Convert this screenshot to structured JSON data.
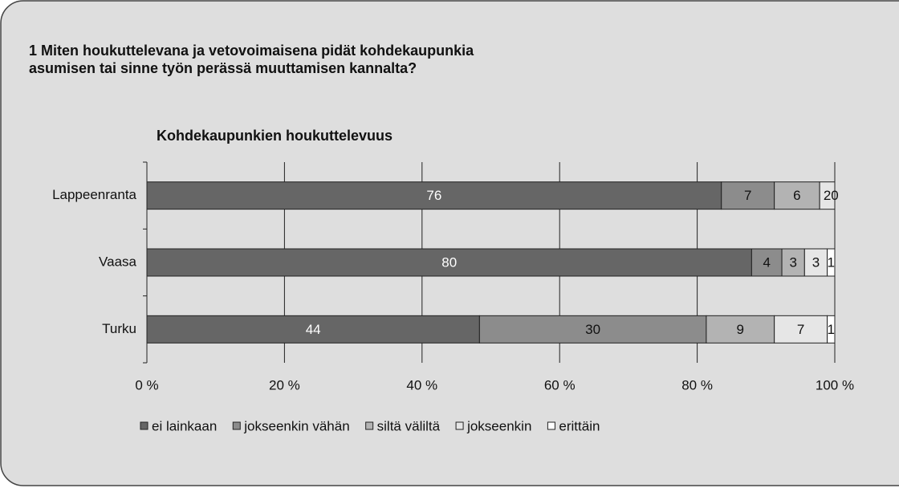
{
  "question": [
    "1 Miten houkuttelevana ja vetovoimaisena pidät kohdekaupunkia",
    "asumisen tai sinne työn perässä muuttamisen kannalta?"
  ],
  "chart_data": {
    "type": "bar",
    "orientation": "horizontal",
    "stacked": "percent",
    "title": "Kohdekaupunkien houkuttelevuus",
    "categories": [
      "Lappeenranta",
      "Vaasa",
      "Turku"
    ],
    "series": [
      {
        "name": "ei lainkaan",
        "color": "#666666",
        "values": [
          76,
          80,
          44
        ]
      },
      {
        "name": "jokseenkin vähän",
        "color": "#8c8c8c",
        "values": [
          7,
          4,
          30
        ]
      },
      {
        "name": "siltä väliltä",
        "color": "#b3b3b3",
        "values": [
          6,
          3,
          9
        ]
      },
      {
        "name": "jokseenkin",
        "color": "#e6e6e6",
        "values": [
          2,
          3,
          7
        ]
      },
      {
        "name": "erittäin",
        "color": "#ffffff",
        "values": [
          0,
          1,
          1
        ]
      }
    ],
    "xlim": [
      0,
      100
    ],
    "xticks": [
      {
        "value": 0,
        "label": "0 %"
      },
      {
        "value": 20,
        "label": "20 %"
      },
      {
        "value": 40,
        "label": "40 %"
      },
      {
        "value": 60,
        "label": "60 %"
      },
      {
        "value": 80,
        "label": "80 %"
      },
      {
        "value": 100,
        "label": "100 %"
      }
    ],
    "grid": true,
    "legend": "bottom"
  }
}
